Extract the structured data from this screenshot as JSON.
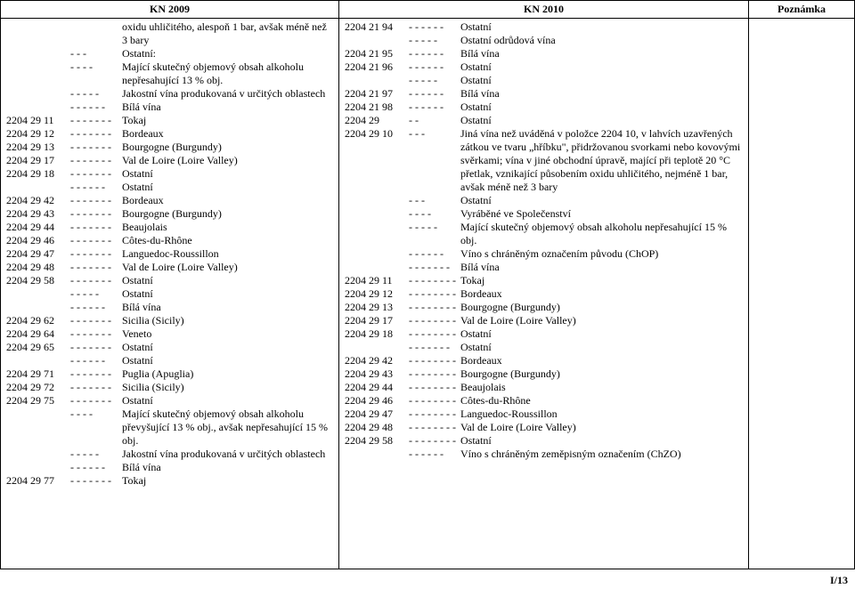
{
  "headers": {
    "c1": "KN 2009",
    "c2": "KN 2010",
    "c3": "Poznámka"
  },
  "page_num": "I/13",
  "col1": [
    {
      "code": "",
      "dash": "",
      "desc": "oxidu uhličitého, alespoň 1 bar, avšak méně než 3 bary"
    },
    {
      "code": "",
      "dash": "- - -",
      "desc": "Ostatní:"
    },
    {
      "code": "",
      "dash": "- - - -",
      "desc": "Mající skutečný objemový obsah alkoholu nepřesahující 13 % obj."
    },
    {
      "code": "",
      "dash": "- - - - -",
      "desc": "Jakostní vína produkovaná v určitých oblastech"
    },
    {
      "code": "",
      "dash": "- - - - - -",
      "desc": "Bílá vína"
    },
    {
      "code": "2204 29 11",
      "dash": "- - - - - - -",
      "desc": "Tokaj"
    },
    {
      "code": "2204 29 12",
      "dash": "- - - - - - -",
      "desc": "Bordeaux"
    },
    {
      "code": "2204 29 13",
      "dash": "- - - - - - -",
      "desc": "Bourgogne (Burgundy)"
    },
    {
      "code": "2204 29 17",
      "dash": "- - - - - - -",
      "desc": "Val de Loire (Loire Valley)"
    },
    {
      "code": "2204 29 18",
      "dash": "- - - - - - -",
      "desc": "Ostatní"
    },
    {
      "code": "",
      "dash": "- - - - - -",
      "desc": "Ostatní"
    },
    {
      "code": "2204 29 42",
      "dash": "- - - - - - -",
      "desc": "Bordeaux"
    },
    {
      "code": "2204 29 43",
      "dash": "- - - - - - -",
      "desc": "Bourgogne (Burgundy)"
    },
    {
      "code": "2204 29 44",
      "dash": "- - - - - - -",
      "desc": "Beaujolais"
    },
    {
      "code": "2204 29 46",
      "dash": "- - - - - - -",
      "desc": "Côtes-du-Rhône"
    },
    {
      "code": "2204 29 47",
      "dash": "- - - - - - -",
      "desc": "Languedoc-Roussillon"
    },
    {
      "code": "2204 29 48",
      "dash": "- - - - - - -",
      "desc": "Val de Loire (Loire Valley)"
    },
    {
      "code": "2204 29 58",
      "dash": "- - - - - - -",
      "desc": "Ostatní"
    },
    {
      "code": "",
      "dash": "- - - - -",
      "desc": "Ostatní"
    },
    {
      "code": "",
      "dash": "- - - - - -",
      "desc": "Bílá vína"
    },
    {
      "code": "2204 29 62",
      "dash": "- - - - - - -",
      "desc": "Sicilia (Sicily)"
    },
    {
      "code": "2204 29 64",
      "dash": "- - - - - - -",
      "desc": "Veneto"
    },
    {
      "code": "2204 29 65",
      "dash": "- - - - - - -",
      "desc": "Ostatní"
    },
    {
      "code": "",
      "dash": "- - - - - -",
      "desc": "Ostatní"
    },
    {
      "code": "2204 29 71",
      "dash": "- - - - - - -",
      "desc": "Puglia (Apuglia)"
    },
    {
      "code": "2204 29 72",
      "dash": "- - - - - - -",
      "desc": "Sicilia (Sicily)"
    },
    {
      "code": "2204 29 75",
      "dash": "- - - - - - -",
      "desc": "Ostatní"
    },
    {
      "code": "",
      "dash": "- - - -",
      "desc": "Mající skutečný objemový obsah alkoholu převyšující 13 % obj., avšak nepřesahující 15 % obj."
    },
    {
      "code": "",
      "dash": "- - - - -",
      "desc": "Jakostní vína produkovaná v určitých oblastech"
    },
    {
      "code": "",
      "dash": "- - - - - -",
      "desc": "Bílá vína"
    },
    {
      "code": "2204 29 77",
      "dash": "- - - - - - -",
      "desc": "Tokaj"
    }
  ],
  "col2": [
    {
      "code": "2204 21 94",
      "dash": "- - - - - -",
      "desc": "Ostatní"
    },
    {
      "code": "",
      "dash": "- - - - -",
      "desc": "Ostatní odrůdová vína"
    },
    {
      "code": "2204 21 95",
      "dash": "- - - - - -",
      "desc": "Bílá vína"
    },
    {
      "code": "2204 21 96",
      "dash": "- - - - - -",
      "desc": "Ostatní"
    },
    {
      "code": "",
      "dash": "- - - - -",
      "desc": "Ostatní"
    },
    {
      "code": "2204 21 97",
      "dash": "- - - - - -",
      "desc": "Bílá vína"
    },
    {
      "code": "2204 21 98",
      "dash": "- - - - - -",
      "desc": "Ostatní"
    },
    {
      "code": "2204 29",
      "dash": "- -",
      "desc": "Ostatní"
    },
    {
      "code": "2204 29 10",
      "dash": "- - -",
      "desc": "Jiná vína než uváděná v položce 2204 10, v lahvích uzavřených zátkou ve tvaru „hříbku\", přidržovanou svorkami nebo kovovými svěrkami; vína v jiné obchodní úpravě, mající při teplotě 20 °C přetlak, vznikající působením oxidu uhličitého, nejméně 1 bar, avšak méně než 3 bary"
    },
    {
      "code": "",
      "dash": "- - -",
      "desc": "Ostatní"
    },
    {
      "code": "",
      "dash": "- - - -",
      "desc": "Vyráběné ve Společenství"
    },
    {
      "code": "",
      "dash": "- - - - -",
      "desc": "Mající skutečný objemový obsah alkoholu nepřesahující 15 % obj."
    },
    {
      "code": "",
      "dash": "- - - - - -",
      "desc": "Víno s chráněným označením původu (ChOP)"
    },
    {
      "code": "",
      "dash": "- - - - - - -",
      "desc": "Bílá vína"
    },
    {
      "code": "2204 29 11",
      "dash": "- - - - - - - -",
      "desc": "Tokaj"
    },
    {
      "code": "2204 29 12",
      "dash": "- - - - - - - -",
      "desc": "Bordeaux"
    },
    {
      "code": "2204 29 13",
      "dash": "- - - - - - - -",
      "desc": "Bourgogne (Burgundy)"
    },
    {
      "code": "2204 29 17",
      "dash": "- - - - - - - -",
      "desc": "Val de Loire (Loire Valley)"
    },
    {
      "code": "2204 29 18",
      "dash": "- - - - - - - -",
      "desc": "Ostatní"
    },
    {
      "code": "",
      "dash": "- - - - - - -",
      "desc": "Ostatní"
    },
    {
      "code": "2204 29 42",
      "dash": "- - - - - - - -",
      "desc": "Bordeaux"
    },
    {
      "code": "2204 29 43",
      "dash": "- - - - - - - -",
      "desc": "Bourgogne (Burgundy)"
    },
    {
      "code": "2204 29 44",
      "dash": "- - - - - - - -",
      "desc": "Beaujolais"
    },
    {
      "code": "2204 29 46",
      "dash": "- - - - - - - -",
      "desc": "Côtes-du-Rhône"
    },
    {
      "code": "2204 29 47",
      "dash": "- - - - - - - -",
      "desc": "Languedoc-Roussillon"
    },
    {
      "code": "2204 29 48",
      "dash": "- - - - - - - -",
      "desc": "Val de Loire (Loire Valley)"
    },
    {
      "code": "2204 29 58",
      "dash": "- - - - - - - -",
      "desc": "Ostatní"
    },
    {
      "code": "",
      "dash": "- - - - - -",
      "desc": "Víno s chráněným zeměpisným označením (ChZO)"
    }
  ]
}
